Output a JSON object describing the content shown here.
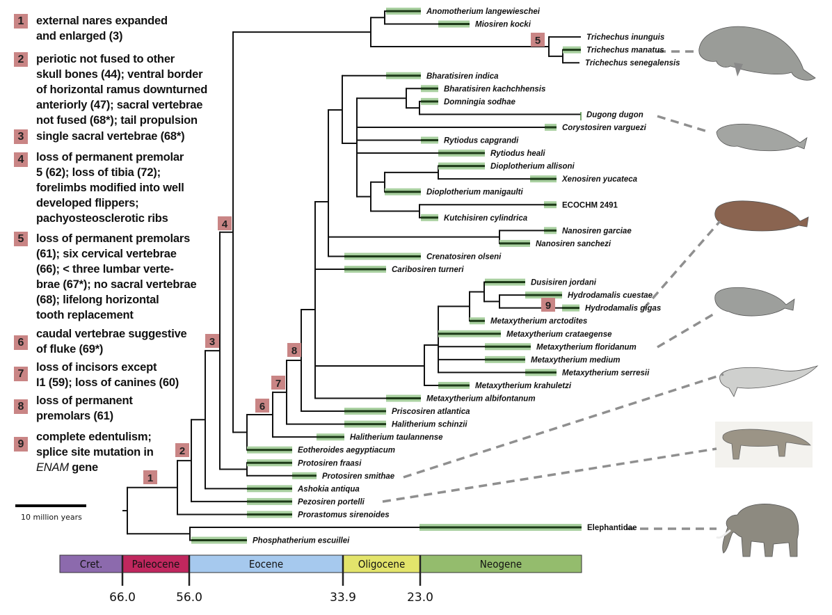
{
  "legend": {
    "items": [
      {
        "number": "1",
        "lines": [
          "external nares expanded",
          "and enlarged (3)"
        ]
      },
      {
        "number": "2",
        "lines": [
          "periotic not fused to other",
          "skull bones (44); ventral border",
          "of horizontal ramus downturned",
          "anteriorly (47); sacral vertebrae",
          "not fused (68*); tail propulsion"
        ]
      },
      {
        "number": "3",
        "lines": [
          "single sacral vertebrae (68*)"
        ]
      },
      {
        "number": "4",
        "lines": [
          "loss of permanent premolar",
          "5 (62); loss of tibia (72);",
          "forelimbs modified into well",
          "developed flippers;",
          "pachyosteosclerotic ribs"
        ]
      },
      {
        "number": "5",
        "lines": [
          "loss of permanent premolars",
          "(61); six cervical vertebrae",
          "(66); < three lumbar verte-",
          "brae (67*); no sacral vertebrae",
          "(68); lifelong horizontal",
          " tooth replacement"
        ]
      },
      {
        "number": "6",
        "lines": [
          "caudal vertebrae suggestive",
          "of fluke (69*)"
        ]
      },
      {
        "number": "7",
        "lines": [
          "loss of incisors except",
          "I1 (59); loss of canines (60)"
        ]
      },
      {
        "number": "8",
        "lines": [
          "loss of permanent",
          "premolars (61)"
        ]
      },
      {
        "number": "9",
        "lines": [
          "complete edentulism;",
          "splice site mutation in"
        ],
        "gene_italic": "ENAM",
        "gene_rest": " gene"
      }
    ]
  },
  "scale_bar": {
    "label": "10 million years",
    "length_my": 10
  },
  "taxa": [
    "Anomotherium langewieschei",
    "Miosiren kocki",
    "Trichechus inunguis",
    "Trichechus manatus",
    "Trichechus senegalensis",
    "Bharatisiren indica",
    "Bharatisiren kachchhensis",
    "Domningia sodhae",
    "Dugong dugon",
    "Corystosiren varguezi",
    "Rytiodus capgrandi",
    "Rytiodus heali",
    "Dioplotherium allisoni",
    "Xenosiren yucateca",
    "Dioplotherium manigaulti",
    "ECOCHM 2491",
    "Kutchisiren cylindrica",
    "Nanosiren garciae",
    "Nanosiren sanchezi",
    "Crenatosiren olseni",
    "Caribosiren turneri",
    "Dusisiren jordani",
    "Hydrodamalis cuestae",
    "Hydrodamalis gigas",
    "Metaxytherium arctodites",
    "Metaxytherium crataegense",
    "Metaxytherium floridanum",
    "Metaxytherium medium",
    "Metaxytherium serresii",
    "Metaxytherium krahuletzi",
    "Metaxytherium albifontanum",
    "Priscosiren atlantica",
    "Halitherium schinzii",
    "Halitherium taulannense",
    "Eotheroides aegyptiacum",
    "Protosiren fraasi",
    "Protosiren smithae",
    "Ashokia antiqua",
    "Pezosiren portelli",
    "Prorastomus sirenoides",
    "Elephantidae",
    "Phosphatherium escuillei"
  ],
  "timescale": {
    "periods": [
      {
        "name": "Cret.",
        "color": "#8c6aad"
      },
      {
        "name": "Paleocene",
        "color": "#c0275e"
      },
      {
        "name": "Eocene",
        "color": "#a6c9ee"
      },
      {
        "name": "Oligocene",
        "color": "#e3e46b"
      },
      {
        "name": "Neogene",
        "color": "#94bc6d"
      }
    ],
    "boundaries_ma": [
      "66.0",
      "56.0",
      "33.9",
      "23.0"
    ]
  },
  "colors": {
    "marker": "#c98585",
    "range_bar": "#a9d0a0",
    "range_line": "#1d3a18",
    "branch": "#111111",
    "dash": "#8f8f8f"
  }
}
